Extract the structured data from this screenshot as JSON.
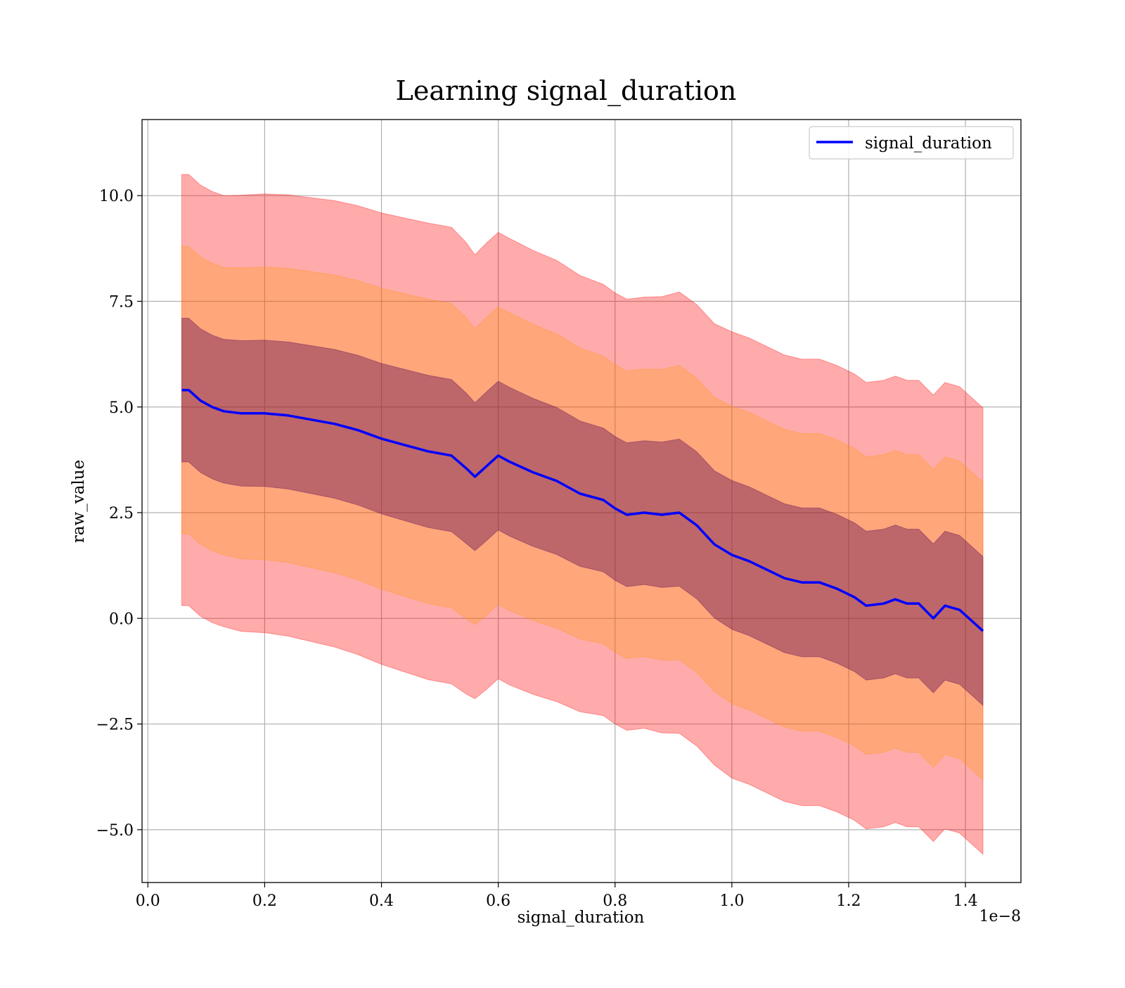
{
  "chart_data": {
    "type": "line",
    "title": "Learning signal_duration",
    "xlabel": "signal_duration",
    "ylabel": "raw_value",
    "x_offset_label": "1e−8",
    "xlim": [
      -0.01,
      1.495
    ],
    "ylim": [
      -6.25,
      11.8
    ],
    "x_ticks": [
      0.0,
      0.2,
      0.4,
      0.6,
      0.8,
      1.0,
      1.2,
      1.4
    ],
    "x_tick_labels": [
      "0.0",
      "0.2",
      "0.4",
      "0.6",
      "0.8",
      "1.0",
      "1.2",
      "1.4"
    ],
    "y_ticks": [
      -5.0,
      -2.5,
      0.0,
      2.5,
      5.0,
      7.5,
      10.0
    ],
    "y_tick_labels": [
      "−5.0",
      "−2.5",
      "0.0",
      "2.5",
      "5.0",
      "7.5",
      "10.0"
    ],
    "grid": true,
    "legend_position": "top-right",
    "x": [
      0.058,
      0.07,
      0.09,
      0.11,
      0.13,
      0.16,
      0.2,
      0.24,
      0.28,
      0.32,
      0.36,
      0.4,
      0.44,
      0.48,
      0.52,
      0.545,
      0.56,
      0.58,
      0.6,
      0.62,
      0.66,
      0.7,
      0.74,
      0.78,
      0.8,
      0.82,
      0.85,
      0.88,
      0.91,
      0.94,
      0.97,
      1.0,
      1.03,
      1.06,
      1.09,
      1.12,
      1.15,
      1.18,
      1.21,
      1.23,
      1.26,
      1.28,
      1.3,
      1.32,
      1.345,
      1.365,
      1.39,
      1.43
    ],
    "series": [
      {
        "name": "signal_duration",
        "color": "#0000ff",
        "values": [
          5.4,
          5.4,
          5.15,
          5.0,
          4.9,
          4.85,
          4.85,
          4.8,
          4.7,
          4.6,
          4.45,
          4.25,
          4.1,
          3.95,
          3.85,
          3.55,
          3.35,
          3.6,
          3.85,
          3.7,
          3.45,
          3.25,
          2.95,
          2.8,
          2.6,
          2.45,
          2.5,
          2.45,
          2.5,
          2.2,
          1.75,
          1.5,
          1.35,
          1.15,
          0.95,
          0.85,
          0.85,
          0.7,
          0.5,
          0.3,
          0.35,
          0.45,
          0.35,
          0.35,
          0.0,
          0.3,
          0.2,
          -0.3
        ]
      }
    ],
    "bands": [
      {
        "sigma": 3,
        "color": "#ff0000",
        "opacity": 0.33
      },
      {
        "sigma": 2,
        "color": "#ff9900",
        "opacity": 0.28
      },
      {
        "sigma": 1,
        "color": "#520052",
        "opacity": 0.38
      }
    ],
    "band_sigma": [
      1.7,
      1.7,
      1.7,
      1.7,
      1.7,
      1.72,
      1.73,
      1.74,
      1.75,
      1.76,
      1.77,
      1.78,
      1.79,
      1.8,
      1.8,
      1.78,
      1.75,
      1.76,
      1.76,
      1.76,
      1.75,
      1.74,
      1.72,
      1.7,
      1.7,
      1.7,
      1.7,
      1.72,
      1.74,
      1.74,
      1.74,
      1.76,
      1.76,
      1.76,
      1.76,
      1.76,
      1.76,
      1.76,
      1.76,
      1.76,
      1.76,
      1.76,
      1.76,
      1.76,
      1.76,
      1.76,
      1.76,
      1.76
    ]
  }
}
